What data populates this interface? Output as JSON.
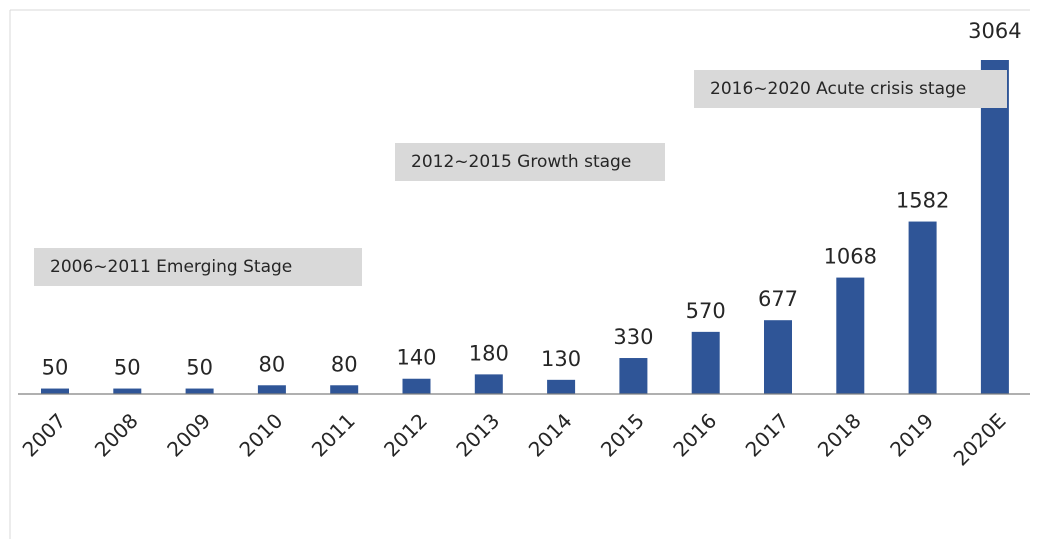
{
  "chart_data": {
    "type": "bar",
    "categories": [
      "2007",
      "2008",
      "2009",
      "2010",
      "2011",
      "2012",
      "2013",
      "2014",
      "2015",
      "2016",
      "2017",
      "2018",
      "2019",
      "2020E"
    ],
    "values": [
      50,
      50,
      50,
      80,
      80,
      140,
      180,
      130,
      330,
      570,
      677,
      1068,
      1582,
      3064
    ],
    "data_labels": [
      "50",
      "50",
      "50",
      "80",
      "80",
      "140",
      "180",
      "130",
      "330",
      "570",
      "677",
      "1068",
      "1582",
      "3064"
    ],
    "title": "",
    "xlabel": "",
    "ylabel": "",
    "ylim": [
      0,
      3064
    ],
    "grid": false,
    "bar_color": "#2f5597",
    "annotations": [
      {
        "text": "2006~2011 Emerging Stage"
      },
      {
        "text": "2012~2015 Growth stage"
      },
      {
        "text": "2016~2020 Acute crisis stage"
      }
    ]
  }
}
